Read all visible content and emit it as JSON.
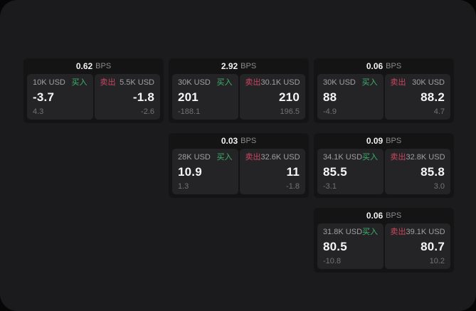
{
  "labels": {
    "bps": "BPS",
    "buy": "买入",
    "sell": "卖出"
  },
  "colors": {
    "buy_green": "#3db26e",
    "sell_red": "#c9475f",
    "window_bg": "#1b1b1d",
    "card_bg": "#141415",
    "panel_bg": "#242426"
  },
  "cards": [
    {
      "bps": "0.62",
      "buy": {
        "amount": "10K USD",
        "price": "-3.7",
        "delta": "4.3"
      },
      "sell": {
        "amount": "5.5K USD",
        "price": "-1.8",
        "delta": "-2.6"
      }
    },
    {
      "bps": "2.92",
      "buy": {
        "amount": "30K USD",
        "price": "201",
        "delta": "-188.1"
      },
      "sell": {
        "amount": "30.1K USD",
        "price": "210",
        "delta": "196.5"
      }
    },
    {
      "bps": "0.06",
      "buy": {
        "amount": "30K USD",
        "price": "88",
        "delta": "-4.9"
      },
      "sell": {
        "amount": "30K USD",
        "price": "88.2",
        "delta": "4.7"
      }
    },
    {
      "bps": "0.03",
      "buy": {
        "amount": "28K USD",
        "price": "10.9",
        "delta": "1.3"
      },
      "sell": {
        "amount": "32.6K USD",
        "price": "11",
        "delta": "-1.8"
      }
    },
    {
      "bps": "0.09",
      "buy": {
        "amount": "34.1K USD",
        "price": "85.5",
        "delta": "-3.1"
      },
      "sell": {
        "amount": "32.8K USD",
        "price": "85.8",
        "delta": "3.0"
      }
    },
    {
      "bps": "0.06",
      "buy": {
        "amount": "31.8K USD",
        "price": "80.5",
        "delta": "-10.8"
      },
      "sell": {
        "amount": "39.1K USD",
        "price": "80.7",
        "delta": "10.2"
      }
    }
  ]
}
